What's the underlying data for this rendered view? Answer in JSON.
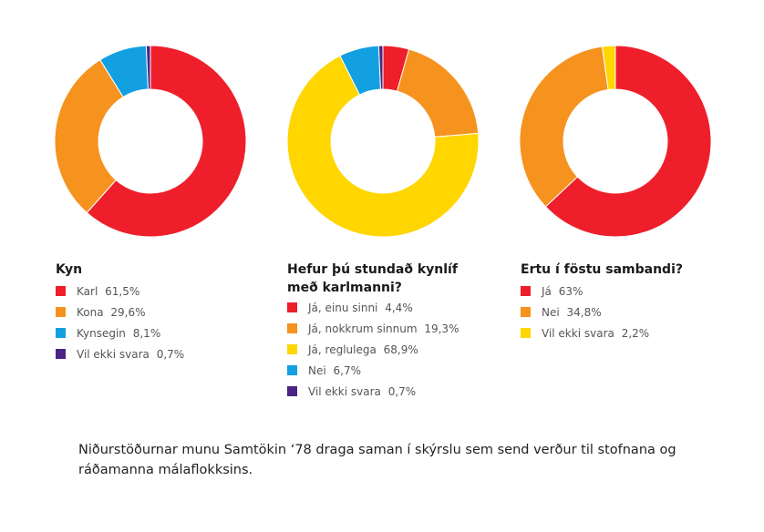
{
  "charts": [
    {
      "title_lines": [
        "Kyn"
      ],
      "slices": [
        {
          "label": "Karl",
          "value_text": "61,5%",
          "value": 61.5,
          "color": "#ee1f2b"
        },
        {
          "label": "Kona",
          "value_text": "29,6%",
          "value": 29.6,
          "color": "#f6921e"
        },
        {
          "label": "Kynsegin",
          "value_text": "8,1%",
          "value": 8.1,
          "color": "#13a0e0"
        },
        {
          "label": "Vil ekki svara",
          "value_text": "0,7%",
          "value": 0.7,
          "color": "#4b2385"
        }
      ]
    },
    {
      "title_lines": [
        "Hefur þú stundað kynlíf",
        "með karlmanni?"
      ],
      "slices": [
        {
          "label": "Já, einu sinni",
          "value_text": "4,4%",
          "value": 4.4,
          "color": "#ee1f2b"
        },
        {
          "label": "Já, nokkrum sinnum",
          "value_text": "19,3%",
          "value": 19.3,
          "color": "#f6921e"
        },
        {
          "label": "Já, reglulega",
          "value_text": "68,9%",
          "value": 68.9,
          "color": "#ffd600"
        },
        {
          "label": "Nei",
          "value_text": "6,7%",
          "value": 6.7,
          "color": "#13a0e0"
        },
        {
          "label": "Vil ekki svara",
          "value_text": "0,7%",
          "value": 0.7,
          "color": "#4b2385"
        }
      ]
    },
    {
      "title_lines": [
        "Ertu í föstu sambandi?"
      ],
      "slices": [
        {
          "label": "Já",
          "value_text": "63%",
          "value": 63,
          "color": "#ee1f2b"
        },
        {
          "label": "Nei",
          "value_text": "34,8%",
          "value": 34.8,
          "color": "#f6921e"
        },
        {
          "label": "Vil ekki svara",
          "value_text": "2,2%",
          "value": 2.2,
          "color": "#ffd600"
        }
      ]
    }
  ],
  "chart_data": [
    {
      "type": "pie",
      "title": "Kyn",
      "categories": [
        "Karl",
        "Kona",
        "Kynsegin",
        "Vil ekki svara"
      ],
      "values": [
        61.5,
        29.6,
        8.1,
        0.7
      ]
    },
    {
      "type": "pie",
      "title": "Hefur þú stundað kynlíf með karlmanni?",
      "categories": [
        "Já, einu sinni",
        "Já, nokkrum sinnum",
        "Já, reglulega",
        "Nei",
        "Vil ekki svara"
      ],
      "values": [
        4.4,
        19.3,
        68.9,
        6.7,
        0.7
      ]
    },
    {
      "type": "pie",
      "title": "Ertu í föstu sambandi?",
      "categories": [
        "Já",
        "Nei",
        "Vil ekki svara"
      ],
      "values": [
        63,
        34.8,
        2.2
      ]
    }
  ],
  "footer": {
    "text": "Niðurstöðurnar munu Samtökin ‘78 draga saman í skýrslu sem send verður til stofnana og ráðamanna málaflokksins."
  }
}
